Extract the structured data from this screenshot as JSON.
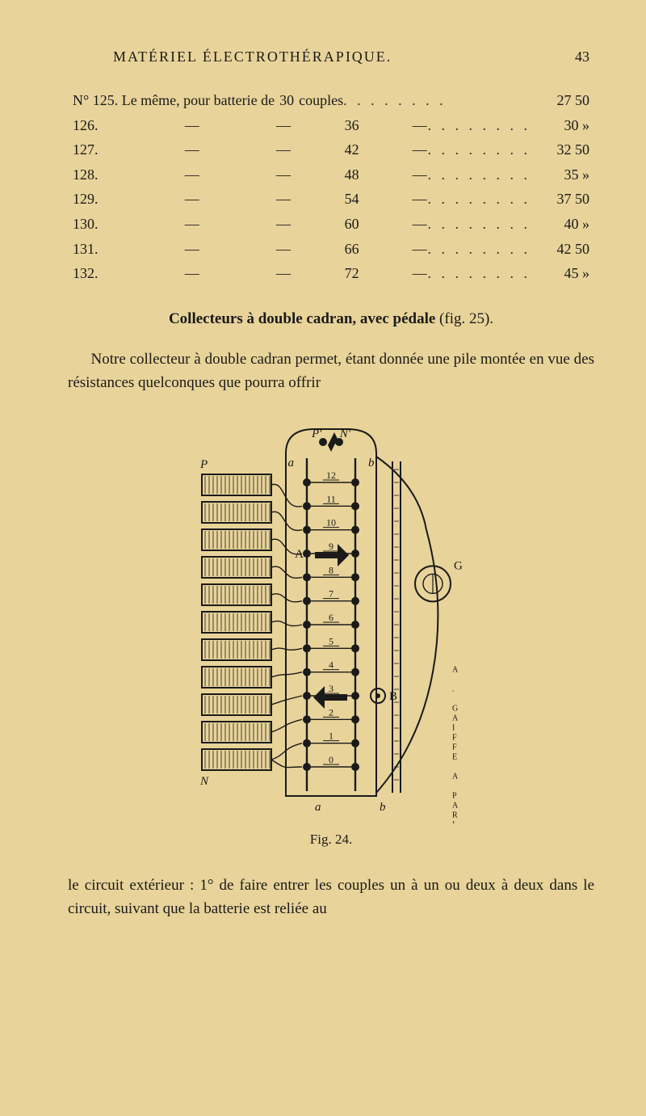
{
  "running_head": {
    "title": "MATÉRIEL ÉLECTROTHÉRAPIQUE.",
    "page": "43"
  },
  "price_list": {
    "first_prefix": "N° 125. Le même, pour batterie de",
    "couples_word": "couples",
    "leader": ". . . . . . . .",
    "rows": [
      {
        "no": "N° 125.",
        "count": "30",
        "price": "27 50"
      },
      {
        "no": "126.",
        "count": "36",
        "price": "30  »"
      },
      {
        "no": "127.",
        "count": "42",
        "price": "32 50"
      },
      {
        "no": "128.",
        "count": "48",
        "price": "35  »"
      },
      {
        "no": "129.",
        "count": "54",
        "price": "37 50"
      },
      {
        "no": "130.",
        "count": "60",
        "price": "40  »"
      },
      {
        "no": "131.",
        "count": "66",
        "price": "42 50"
      },
      {
        "no": "132.",
        "count": "72",
        "price": "45  »"
      }
    ]
  },
  "section_title": {
    "bold": "Collecteurs à double cadran, avec pédale",
    "rest": " (fig. 25)."
  },
  "body_para": "Notre collecteur à double cadran permet, étant donnée une pile montée en vue des résistances quelconques que pourra offrir",
  "figure": {
    "caption": "Fig. 24.",
    "labels": {
      "P_top": "P'",
      "N_top": "N'",
      "a_top": "a",
      "b_top": "b",
      "P_left": "P",
      "N_left": "N",
      "A_mid": "A",
      "B_mid": "B",
      "G_right": "G",
      "a_bot": "a",
      "b_bot": "b",
      "side_text": "A . GAIFFE A PARIS"
    },
    "levels": [
      "12",
      "11",
      "10",
      "9",
      "8",
      "7",
      "6",
      "5",
      "4",
      "3",
      "2",
      "1",
      "0"
    ],
    "colors": {
      "ink": "#1a1a18",
      "paper": "#e8d39a"
    }
  },
  "footer_para": "le circuit extérieur : 1° de faire entrer les couples un à un ou deux à deux dans le circuit, suivant que la batterie est reliée au"
}
